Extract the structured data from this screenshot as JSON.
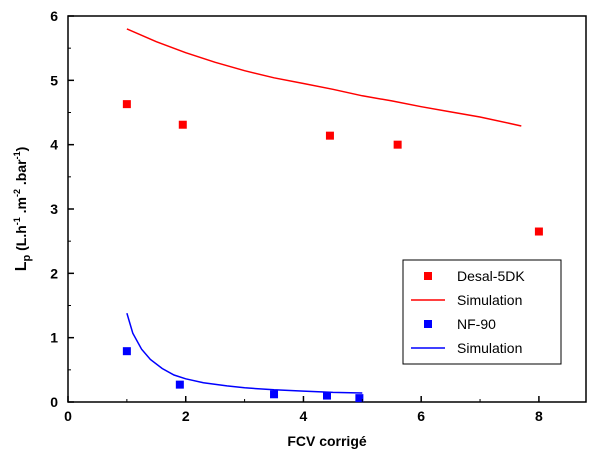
{
  "chart_data": {
    "type": "scatter",
    "xlabel": "FCV corrigé",
    "ylabel_main": "L",
    "ylabel_sub": "p",
    "ylabel_rest": [
      {
        "text": " (L.h",
        "sup": "-1"
      },
      {
        "text": " .m",
        "sup": "-2"
      },
      {
        "text": " .bar",
        "sup": "-1"
      },
      {
        "text": ")",
        "sup": ""
      }
    ],
    "xlim": [
      0,
      8.8
    ],
    "ylim": [
      0,
      6
    ],
    "xticks": [
      0,
      2,
      4,
      6,
      8
    ],
    "yticks": [
      0,
      1,
      2,
      3,
      4,
      5,
      6
    ],
    "grid": false,
    "legend_position": "bottom-right",
    "series": [
      {
        "name": "Desal-5DK",
        "kind": "points",
        "color": "#ff0000",
        "x": [
          1.0,
          1.95,
          4.45,
          5.6,
          8.0
        ],
        "y": [
          4.63,
          4.31,
          4.14,
          4.0,
          2.65
        ]
      },
      {
        "name": "Simulation",
        "kind": "line",
        "color": "#ff0000",
        "x": [
          1.0,
          1.5,
          2.0,
          2.5,
          3.0,
          3.5,
          4.0,
          4.5,
          5.0,
          5.5,
          6.0,
          6.5,
          7.0,
          7.5,
          7.7
        ],
        "y": [
          5.8,
          5.6,
          5.43,
          5.28,
          5.15,
          5.04,
          4.95,
          4.86,
          4.76,
          4.68,
          4.59,
          4.51,
          4.43,
          4.33,
          4.29
        ]
      },
      {
        "name": "NF-90",
        "kind": "points",
        "color": "#0000ff",
        "x": [
          1.0,
          1.9,
          3.5,
          4.4,
          4.95
        ],
        "y": [
          0.79,
          0.27,
          0.12,
          0.1,
          0.06
        ]
      },
      {
        "name": "Simulation",
        "kind": "line",
        "color": "#0000ff",
        "x": [
          1.0,
          1.1,
          1.25,
          1.4,
          1.6,
          1.8,
          2.0,
          2.3,
          2.7,
          3.0,
          3.5,
          4.0,
          4.5,
          5.0
        ],
        "y": [
          1.38,
          1.07,
          0.82,
          0.66,
          0.52,
          0.42,
          0.36,
          0.3,
          0.25,
          0.22,
          0.19,
          0.17,
          0.15,
          0.14
        ]
      }
    ]
  }
}
